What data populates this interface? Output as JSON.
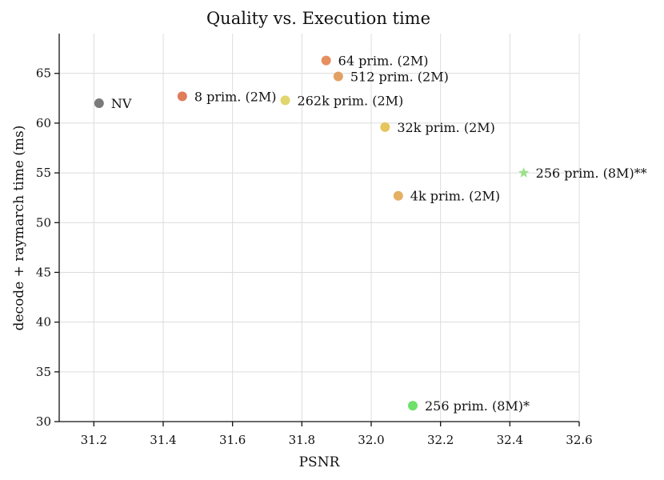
{
  "chart_data": {
    "type": "scatter",
    "title": "Quality vs. Execution time",
    "xlabel": "PSNR",
    "ylabel": "decode + raymarch time (ms)",
    "xlim": [
      31.1,
      32.6
    ],
    "ylim": [
      30,
      69
    ],
    "xticks": [
      "31.2",
      "31.4",
      "31.6",
      "31.8",
      "32.0",
      "32.2",
      "32.4",
      "32.6"
    ],
    "yticks": [
      "30",
      "35",
      "40",
      "45",
      "50",
      "55",
      "60",
      "65"
    ],
    "grid": true,
    "points": [
      {
        "label": "NV",
        "x": 31.215,
        "y": 62.0,
        "marker": "circle",
        "color": "#7a7a7a"
      },
      {
        "label": "8 prim. (2M)",
        "x": 31.455,
        "y": 62.7,
        "marker": "circle",
        "color": "#df7c5c"
      },
      {
        "label": "64 prim. (2M)",
        "x": 31.87,
        "y": 66.3,
        "marker": "circle",
        "color": "#e5905e"
      },
      {
        "label": "512 prim. (2M)",
        "x": 31.905,
        "y": 64.7,
        "marker": "circle",
        "color": "#e3a064"
      },
      {
        "label": "262k prim. (2M)",
        "x": 31.752,
        "y": 62.3,
        "marker": "circle",
        "color": "#e0d56e"
      },
      {
        "label": "32k prim. (2M)",
        "x": 32.04,
        "y": 59.6,
        "marker": "circle",
        "color": "#e6c55e"
      },
      {
        "label": "256 prim. (8M)**",
        "x": 32.44,
        "y": 55.0,
        "marker": "star",
        "color": "#9ee08e"
      },
      {
        "label": "4k prim. (2M)",
        "x": 32.078,
        "y": 52.7,
        "marker": "circle",
        "color": "#e4b062"
      },
      {
        "label": "256 prim. (8M)*",
        "x": 32.12,
        "y": 31.6,
        "marker": "circle",
        "color": "#6fe06a"
      }
    ]
  }
}
